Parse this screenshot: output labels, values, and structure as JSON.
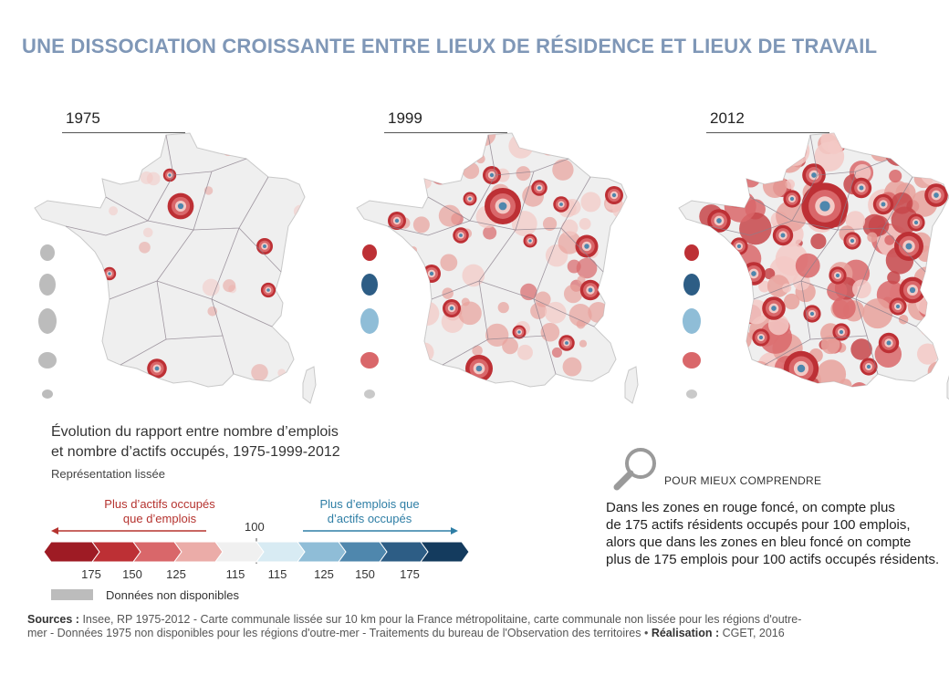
{
  "title": "UNE DISSOCIATION CROISSANTE ENTRE LIEUX DE RÉSIDENCE ET LIEUX DE TRAVAIL",
  "maps": [
    {
      "year": "1975",
      "intensity": 0
    },
    {
      "year": "1999",
      "intensity": 1
    },
    {
      "year": "2012",
      "intensity": 2
    }
  ],
  "legend": {
    "title_line1": "Évolution du rapport entre nombre d’emplois",
    "title_line2": "et nombre d’actifs occupés, 1975-1999-2012",
    "subtitle": "Représentation lissée",
    "red_label_line1": "Plus d’actifs occupés",
    "red_label_line2": "que d’emplois",
    "blue_label_line1": "Plus d’emplois que",
    "blue_label_line2": "d’actifs occupés",
    "center_value": "100",
    "scale_labels": [
      "175",
      "150",
      "125",
      "115",
      "115",
      "125",
      "150",
      "175"
    ],
    "colors": [
      "#9e1b24",
      "#bd3035",
      "#d9676a",
      "#ebaca8",
      "#f0f0f0",
      "#d8ebf3",
      "#8fbdd7",
      "#4f87ad",
      "#2d5d85",
      "#143b5e"
    ],
    "no_data_label": "Données non disponibles",
    "no_data_color": "#bcbcbc"
  },
  "pour_mieux": {
    "title": "POUR MIEUX COMPRENDRE",
    "line1": "Dans les zones en rouge foncé, on compte plus",
    "line2": "de 175 actifs résidents occupés pour 100 emplois,",
    "line3": "alors que dans les zones en bleu foncé on compte",
    "line4": "plus de 175 emplois pour 100 actifs occupés résidents."
  },
  "sources": {
    "label": "Sources :",
    "text1": " Insee, RP 1975-2012 - Carte communale lissée sur 10 km pour la France métropolitaine, carte communale non lissée pour les régions d'outre-",
    "text2": "mer - Données 1975 non disponibles pour les régions d'outre-mer - Traitements du bureau de l'Observation des territoires • ",
    "realisation_label": "Réalisation :",
    "realisation_text": " CGET, 2016"
  }
}
